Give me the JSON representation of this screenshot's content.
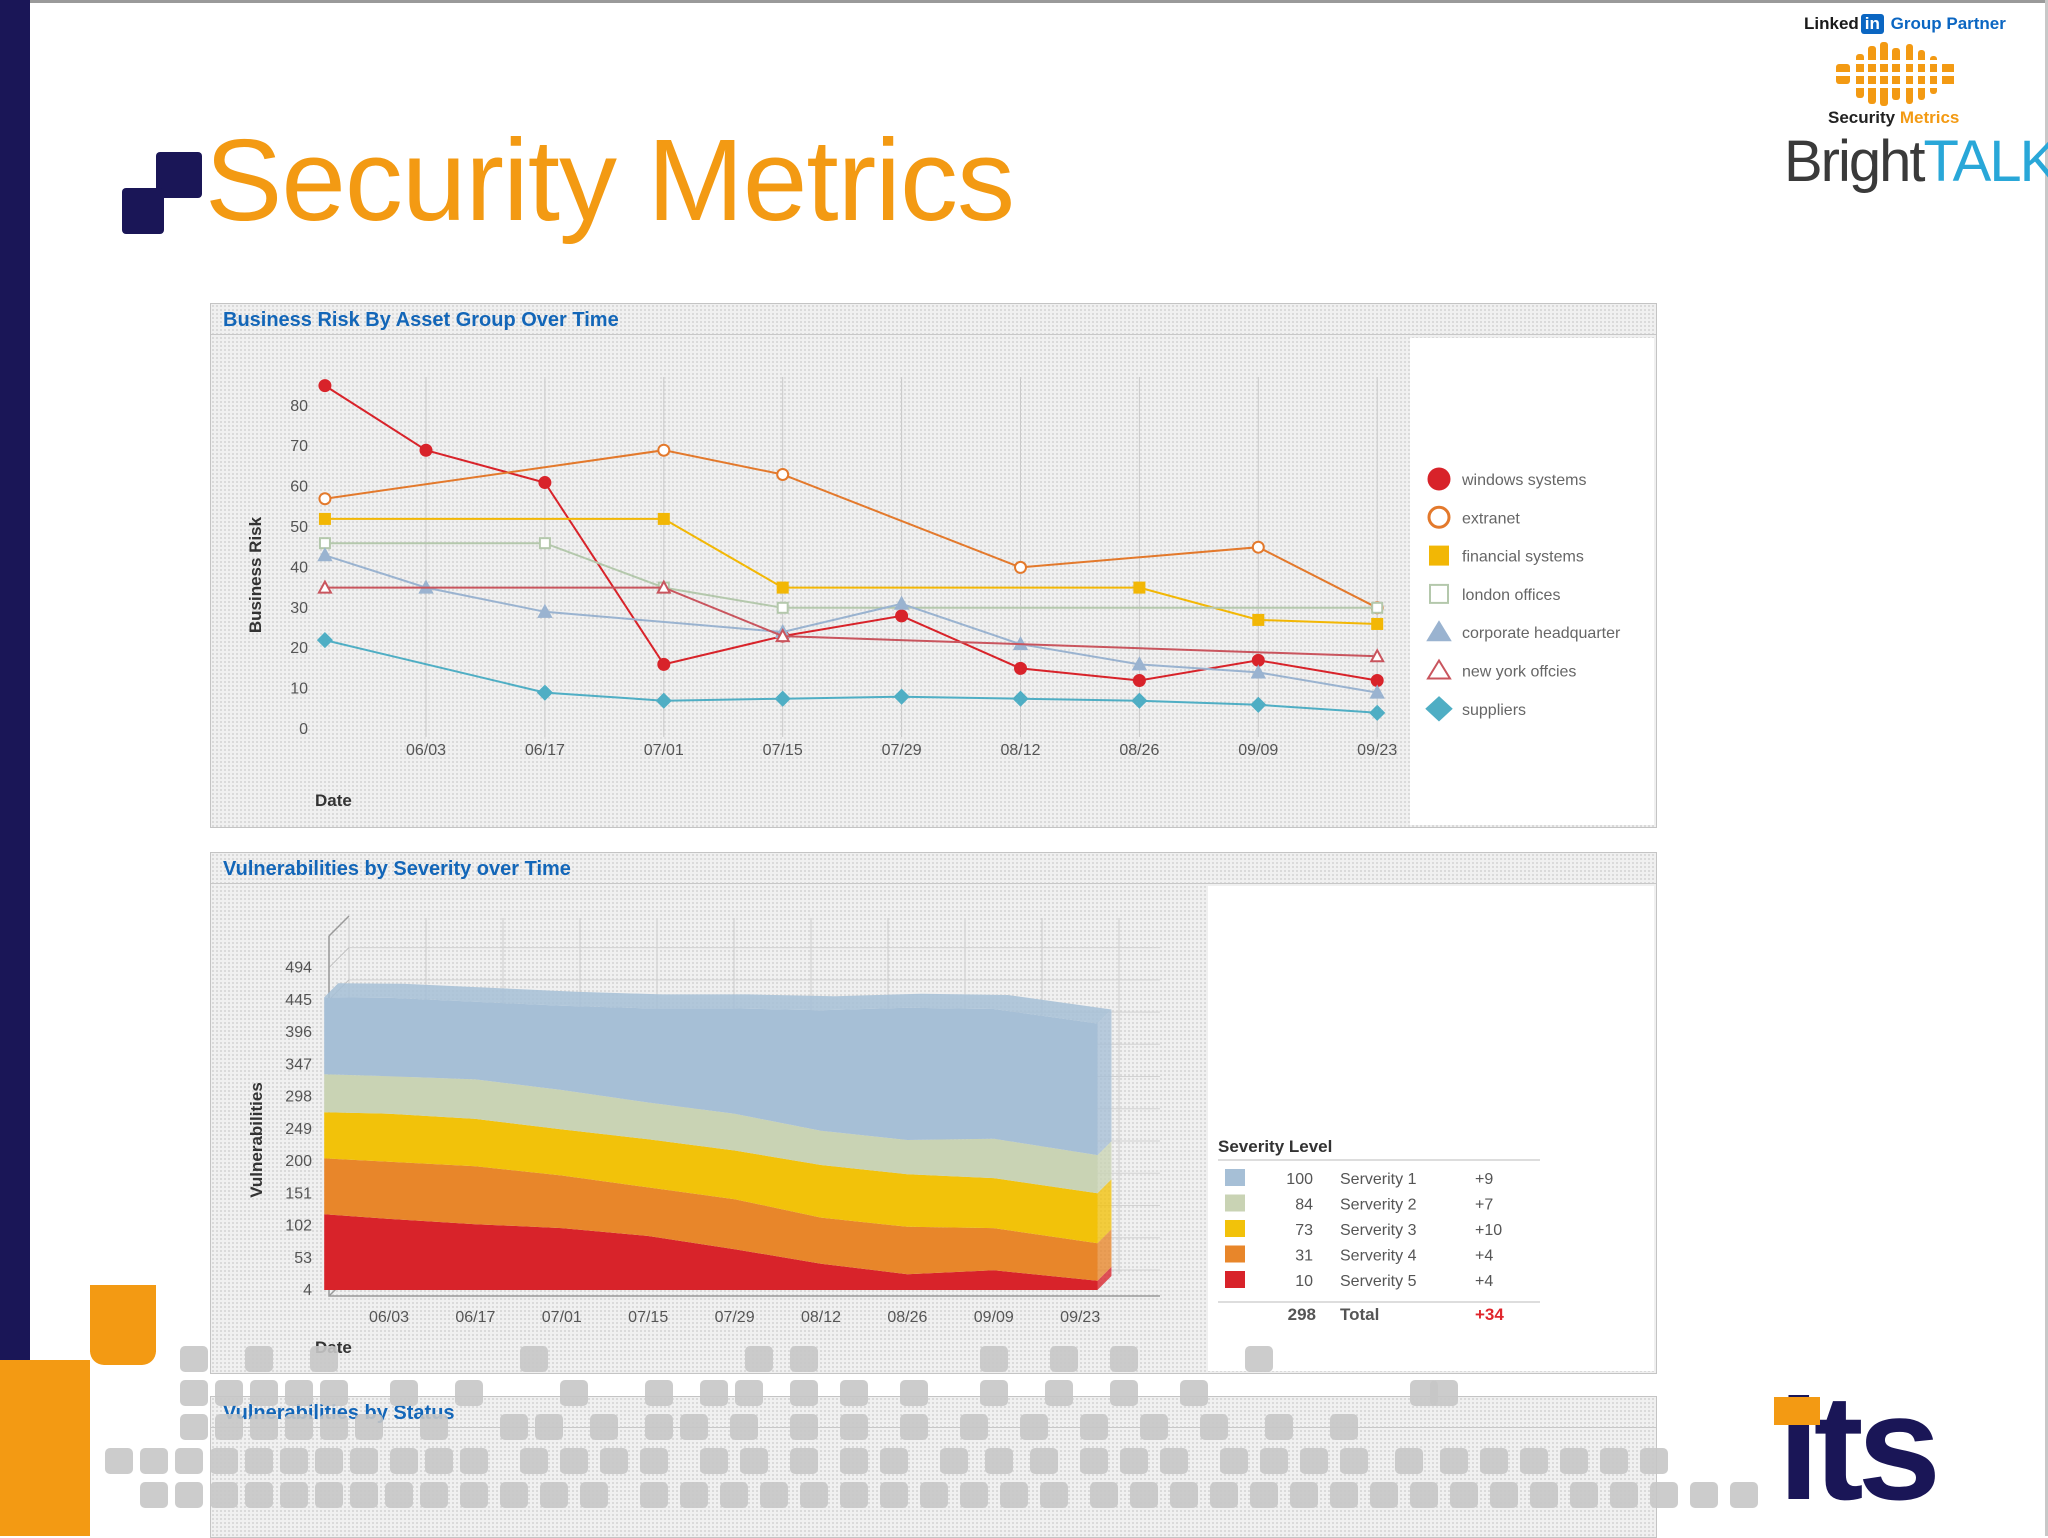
{
  "header": {
    "title": "Security Metrics",
    "logo_linkedin": "Linked",
    "logo_linkedin_in": "in",
    "logo_group_partner": "Group Partner",
    "logo_security": "Security",
    "logo_metrics": "Metrics",
    "logo_bright": "Bright",
    "logo_talk": "TALK",
    "logo_tm": "™",
    "logo_its": "its"
  },
  "panels": {
    "risk_title": "Business Risk By Asset Group Over Time",
    "vuln_title": "Vulnerabilities by Severity over Time",
    "status_title": "Vulnerabilities by Status"
  },
  "colors": {
    "brand_orange": "#f39a13",
    "brand_navy": "#1a1657",
    "panel_title_blue": "#1366b8"
  },
  "chart_data": [
    {
      "type": "line",
      "title": "Business Risk By Asset Group Over Time",
      "xlabel": "Date",
      "ylabel": "Business Risk",
      "ylim": [
        0,
        80
      ],
      "yticks": [
        0,
        10,
        20,
        30,
        40,
        50,
        60,
        70,
        80
      ],
      "categories": [
        "06/03",
        "06/17",
        "07/01",
        "07/15",
        "07/29",
        "08/12",
        "08/26",
        "09/09",
        "09/23"
      ],
      "x": [
        -0.85,
        0,
        1,
        2,
        3,
        4,
        5,
        6,
        7,
        8
      ],
      "grid": "vertical",
      "legend_position": "right",
      "series": [
        {
          "name": "windows systems",
          "color": "#d8232a",
          "marker": "filled-circle",
          "points": [
            [
              -0.85,
              85
            ],
            [
              0,
              69
            ],
            [
              1,
              61
            ],
            [
              2,
              16
            ],
            [
              3,
              23
            ],
            [
              4,
              28
            ],
            [
              5,
              15
            ],
            [
              6,
              12
            ],
            [
              7,
              17
            ],
            [
              8,
              12
            ]
          ]
        },
        {
          "name": "extranet",
          "color": "#e3792c",
          "marker": "open-circle",
          "points": [
            [
              -0.85,
              57
            ],
            [
              2,
              69
            ],
            [
              3,
              63
            ],
            [
              5,
              40
            ],
            [
              7,
              45
            ],
            [
              8,
              30
            ]
          ]
        },
        {
          "name": "financial systems",
          "color": "#f2b705",
          "marker": "filled-square",
          "points": [
            [
              -0.85,
              52
            ],
            [
              2,
              52
            ],
            [
              3,
              35
            ],
            [
              6,
              35
            ],
            [
              7,
              27
            ],
            [
              8,
              26
            ]
          ]
        },
        {
          "name": "london offices",
          "color": "#b4c8ac",
          "marker": "open-square",
          "points": [
            [
              -0.85,
              46
            ],
            [
              1,
              46
            ],
            [
              2,
              35
            ],
            [
              3,
              30
            ],
            [
              8,
              30
            ]
          ]
        },
        {
          "name": "corporate headquarter",
          "color": "#9ab3d0",
          "marker": "filled-triangle",
          "points": [
            [
              -0.85,
              43
            ],
            [
              0,
              35
            ],
            [
              1,
              29
            ],
            [
              3,
              24
            ],
            [
              4,
              31
            ],
            [
              5,
              21
            ],
            [
              6,
              16
            ],
            [
              7,
              14
            ],
            [
              8,
              9
            ]
          ]
        },
        {
          "name": "new york offcies",
          "color": "#c9555e",
          "marker": "open-triangle",
          "points": [
            [
              -0.85,
              35
            ],
            [
              2,
              35
            ],
            [
              3,
              23
            ],
            [
              8,
              18
            ]
          ]
        },
        {
          "name": "suppliers",
          "color": "#4faec4",
          "marker": "filled-diamond",
          "points": [
            [
              -0.85,
              22
            ],
            [
              1,
              9
            ],
            [
              2,
              7
            ],
            [
              3,
              7.5
            ],
            [
              4,
              8
            ],
            [
              5,
              7.5
            ],
            [
              6,
              7
            ],
            [
              7,
              6
            ],
            [
              8,
              4
            ]
          ]
        }
      ]
    },
    {
      "type": "area",
      "stacked": true,
      "style": "3d",
      "title": "Vulnerabilities by Severity over Time",
      "xlabel": "Date",
      "ylabel": "Vulnerabilities",
      "ylim": [
        4,
        494
      ],
      "yticks": [
        4,
        53,
        102,
        151,
        200,
        249,
        298,
        347,
        396,
        445,
        494
      ],
      "categories": [
        "06/03",
        "06/17",
        "07/01",
        "07/15",
        "07/29",
        "08/12",
        "08/26",
        "09/09",
        "09/23"
      ],
      "x": [
        -0.75,
        0,
        1,
        2,
        3,
        4,
        5,
        6,
        7,
        8.2
      ],
      "legend_position": "bottom-right",
      "series": [
        {
          "name": "Serverity 5",
          "color": "#d8232a",
          "values": [
            115,
            108,
            100,
            94,
            82,
            62,
            40,
            24,
            30,
            14
          ]
        },
        {
          "name": "Serverity 4",
          "color": "#e8862a",
          "values": [
            85,
            87,
            88,
            80,
            74,
            76,
            70,
            72,
            64,
            57
          ]
        },
        {
          "name": "Serverity 3",
          "color": "#f2c20a",
          "values": [
            70,
            73,
            72,
            70,
            73,
            74,
            80,
            80,
            76,
            76
          ]
        },
        {
          "name": "Serverity 2",
          "color": "#c9d3b4",
          "values": [
            58,
            57,
            60,
            60,
            56,
            56,
            52,
            52,
            60,
            58
          ]
        },
        {
          "name": "Serverity 1",
          "color": "#a6bfd6",
          "values": [
            117,
            119,
            118,
            128,
            143,
            160,
            183,
            201,
            197,
            200
          ]
        }
      ],
      "legend": {
        "title": "Severity Level",
        "rows": [
          {
            "count": "100",
            "label": "Serverity 1",
            "change": "+9",
            "color": "#a6bfd6"
          },
          {
            "count": "84",
            "label": "Serverity 2",
            "change": "+7",
            "color": "#c9d3b4"
          },
          {
            "count": "73",
            "label": "Serverity 3",
            "change": "+10",
            "color": "#f2c20a"
          },
          {
            "count": "31",
            "label": "Serverity 4",
            "change": "+4",
            "color": "#e8862a"
          },
          {
            "count": "10",
            "label": "Serverity 5",
            "change": "+4",
            "color": "#d8232a"
          }
        ],
        "total_count": "298",
        "total_label": "Total",
        "total_change": "+34"
      }
    }
  ]
}
